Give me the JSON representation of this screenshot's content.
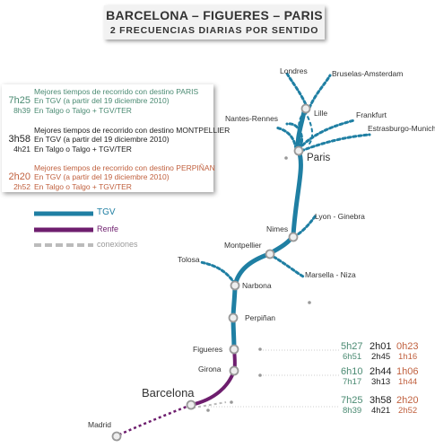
{
  "header": {
    "title": "BARCELONA – FIGUERES – PARIS",
    "subtitle": "2 FRECUENCIAS DIARIAS POR SENTIDO"
  },
  "info": {
    "paris": {
      "heading": "Mejores tiempos de recorrido con destino PARIS",
      "tgv_time": "7h25",
      "tgv_desc": "En TGV (a partir del 19 diciembre 2010)",
      "talgo_time": "8h39",
      "talgo_desc": "En Talgo o Talgo + TGV/TER",
      "color": "#4a8a72"
    },
    "montpellier": {
      "heading": "Mejores tiempos de recorrido con destino MONTPELLIER",
      "tgv_time": "3h58",
      "tgv_desc": "En TGV (a partir del 19 diciembre 2010)",
      "talgo_time": "4h21",
      "talgo_desc": "En Talgo o Talgo + TGV/TER",
      "color": "#222222"
    },
    "perpignan": {
      "heading": "Mejores tiempos de recorrido con destino PERPIÑAN",
      "tgv_time": "2h20",
      "tgv_desc": "En TGV (a partir del 19 diciembre 2010)",
      "talgo_time": "2h52",
      "talgo_desc": "En Talgo o Talgo + TGV/TER",
      "color": "#c0603e"
    }
  },
  "legend": {
    "tgv": "TGV",
    "renfe": "Renfe",
    "conexiones": "conexiones",
    "tgv_color": "#1f7fa3",
    "renfe_color": "#6e1e6e",
    "conexiones_color": "#bbbbbb"
  },
  "cities": {
    "londres": "Londres",
    "bruselas": "Bruselas-Amsterdam",
    "lille": "Lille",
    "nantes": "Nantes-Rennes",
    "frankfurt": "Frankfurt",
    "estrasburgo": "Estrasburgo-Munich",
    "paris": "Paris",
    "nimes": "Nimes",
    "lyon": "Lyon - Ginebra",
    "montpellier": "Montpellier",
    "tolosa": "Tolosa",
    "marsella": "Marsella - Niza",
    "narbona": "Narbona",
    "perpignan": "Perpiñan",
    "figueres": "Figueres",
    "girona": "Girona",
    "barcelona": "Barcelona",
    "madrid": "Madrid"
  },
  "timetable": {
    "figueres": {
      "paris_tgv": "5h27",
      "paris_talgo": "6h51",
      "mont_tgv": "2h01",
      "mont_talgo": "2h45",
      "perp_tgv": "0h23",
      "perp_talgo": "1h16"
    },
    "girona": {
      "paris_tgv": "6h10",
      "paris_talgo": "7h17",
      "mont_tgv": "2h44",
      "mont_talgo": "3h13",
      "perp_tgv": "1h06",
      "perp_talgo": "1h44"
    },
    "barcelona": {
      "paris_tgv": "7h25",
      "paris_talgo": "8h39",
      "mont_tgv": "3h58",
      "mont_talgo": "4h21",
      "perp_tgv": "2h20",
      "perp_talgo": "2h52"
    }
  }
}
